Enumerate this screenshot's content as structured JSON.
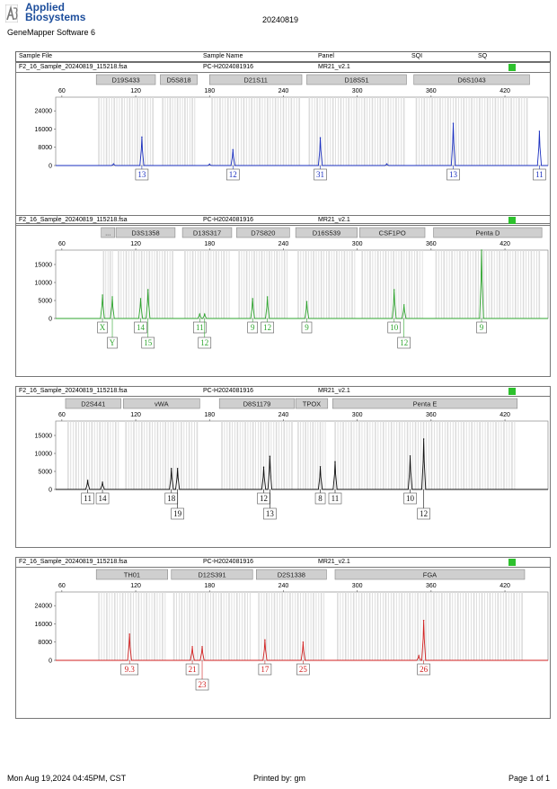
{
  "header": {
    "brand_line1": "Applied",
    "brand_line2": "Biosystems",
    "software": "GeneMapper Software 6",
    "title": "20240819",
    "columns": [
      "Sample File",
      "Sample Name",
      "Panel",
      "SQI",
      "SQ"
    ]
  },
  "colors": {
    "blue": "#1a2fbf",
    "green": "#2fa52f",
    "black": "#111111",
    "red": "#d02020",
    "sq_ok": "#2dc12d"
  },
  "footer": {
    "printed_date": "Mon Aug 19,2024 04:45PM, CST",
    "printed_by": "Printed by: gm",
    "page": "Page 1 of 1"
  },
  "chart_data": [
    {
      "type": "line",
      "sample_file": "F2_16_Sample_20240819_115218.fsa",
      "sample_name": "PC-H2024081916",
      "panel": "MR21_v2.1",
      "color": "#1a2fbf",
      "x_ticks": [
        60,
        120,
        180,
        240,
        300,
        360,
        420
      ],
      "y_ticks": [
        0,
        8000,
        16000,
        24000
      ],
      "xlim": [
        55,
        455
      ],
      "ylim": [
        0,
        30000
      ],
      "markers": [
        {
          "label": "D19S433",
          "start": 88,
          "end": 136
        },
        {
          "label": "D5S818",
          "start": 140,
          "end": 170
        },
        {
          "label": "D21S11",
          "start": 180,
          "end": 255
        },
        {
          "label": "D18S51",
          "start": 259,
          "end": 340
        },
        {
          "label": "D6S1043",
          "start": 346,
          "end": 440
        }
      ],
      "peaks": [
        {
          "x": 102,
          "y": 700
        },
        {
          "x": 125,
          "y": 12500
        },
        {
          "x": 180,
          "y": 600
        },
        {
          "x": 199,
          "y": 7000
        },
        {
          "x": 270,
          "y": 12200
        },
        {
          "x": 324,
          "y": 700
        },
        {
          "x": 378,
          "y": 18500
        },
        {
          "x": 460,
          "y": 0
        },
        {
          "x": 448,
          "y": 15000
        },
        {
          "x": 476,
          "y": 500
        }
      ],
      "alleles": [
        {
          "x": 125,
          "labels": [
            "13"
          ]
        },
        {
          "x": 199,
          "labels": [
            "12"
          ]
        },
        {
          "x": 270,
          "labels": [
            "31"
          ]
        },
        {
          "x": 378,
          "labels": [
            "13"
          ]
        },
        {
          "x": 448,
          "labels": [
            "11"
          ]
        }
      ]
    },
    {
      "type": "line",
      "sample_file": "F2_16_Sample_20240819_115218.fsa",
      "sample_name": "PC-H2024081916",
      "panel": "MR21_v2.1",
      "color": "#2fa52f",
      "x_ticks": [
        60,
        120,
        180,
        240,
        300,
        360,
        420
      ],
      "y_ticks": [
        0,
        5000,
        10000,
        15000
      ],
      "xlim": [
        55,
        455
      ],
      "ylim": [
        0,
        19000
      ],
      "markers": [
        {
          "label": "...",
          "start": 92,
          "end": 103
        },
        {
          "label": "D3S1358",
          "start": 104,
          "end": 152
        },
        {
          "label": "D13S317",
          "start": 158,
          "end": 198
        },
        {
          "label": "D7S820",
          "start": 202,
          "end": 245
        },
        {
          "label": "D16S539",
          "start": 250,
          "end": 300
        },
        {
          "label": "CSF1PO",
          "start": 302,
          "end": 355
        },
        {
          "label": "Penta D",
          "start": 362,
          "end": 450
        }
      ],
      "peaks": [
        {
          "x": 93,
          "y": 6500
        },
        {
          "x": 101,
          "y": 6000
        },
        {
          "x": 124,
          "y": 5500
        },
        {
          "x": 130,
          "y": 8000
        },
        {
          "x": 172,
          "y": 1200
        },
        {
          "x": 176,
          "y": 1200
        },
        {
          "x": 215,
          "y": 5500
        },
        {
          "x": 227,
          "y": 6000
        },
        {
          "x": 259,
          "y": 4700
        },
        {
          "x": 330,
          "y": 8000
        },
        {
          "x": 338,
          "y": 3800
        },
        {
          "x": 401,
          "y": 19000
        }
      ],
      "alleles": [
        {
          "x": 93,
          "labels": [
            "X"
          ]
        },
        {
          "x": 101,
          "labels": [
            "",
            "Y"
          ]
        },
        {
          "x": 124,
          "labels": [
            "14"
          ]
        },
        {
          "x": 130,
          "labels": [
            "",
            "15"
          ]
        },
        {
          "x": 172,
          "labels": [
            "11"
          ]
        },
        {
          "x": 176,
          "labels": [
            "",
            "12"
          ]
        },
        {
          "x": 215,
          "labels": [
            "9"
          ]
        },
        {
          "x": 227,
          "labels": [
            "12"
          ]
        },
        {
          "x": 259,
          "labels": [
            "9"
          ]
        },
        {
          "x": 330,
          "labels": [
            "10"
          ]
        },
        {
          "x": 338,
          "labels": [
            "",
            "12"
          ]
        },
        {
          "x": 401,
          "labels": [
            "9"
          ]
        }
      ]
    },
    {
      "type": "line",
      "sample_file": "F2_16_Sample_20240819_115218.fsa",
      "sample_name": "PC-H2024081916",
      "panel": "MR21_v2.1",
      "color": "#111111",
      "x_ticks": [
        60,
        120,
        180,
        240,
        300,
        360,
        420
      ],
      "y_ticks": [
        0,
        5000,
        10000,
        15000
      ],
      "xlim": [
        55,
        455
      ],
      "ylim": [
        0,
        19000
      ],
      "markers": [
        {
          "label": "D2S441",
          "start": 63,
          "end": 108
        },
        {
          "label": "vWA",
          "start": 110,
          "end": 172
        },
        {
          "label": "D8S1179",
          "start": 188,
          "end": 249
        },
        {
          "label": "TPOX",
          "start": 250,
          "end": 276
        },
        {
          "label": "Penta E",
          "start": 280,
          "end": 430
        }
      ],
      "peaks": [
        {
          "x": 81,
          "y": 2500
        },
        {
          "x": 93,
          "y": 2000
        },
        {
          "x": 149,
          "y": 5800
        },
        {
          "x": 154,
          "y": 5800
        },
        {
          "x": 224,
          "y": 6200
        },
        {
          "x": 229,
          "y": 9200
        },
        {
          "x": 270,
          "y": 6300
        },
        {
          "x": 282,
          "y": 7700
        },
        {
          "x": 343,
          "y": 9300
        },
        {
          "x": 354,
          "y": 14000
        }
      ],
      "alleles": [
        {
          "x": 81,
          "labels": [
            "11"
          ]
        },
        {
          "x": 93,
          "labels": [
            "14"
          ]
        },
        {
          "x": 149,
          "labels": [
            "18"
          ]
        },
        {
          "x": 154,
          "labels": [
            "",
            "19"
          ]
        },
        {
          "x": 224,
          "labels": [
            "12"
          ]
        },
        {
          "x": 229,
          "labels": [
            "",
            "13"
          ]
        },
        {
          "x": 270,
          "labels": [
            "8"
          ]
        },
        {
          "x": 282,
          "labels": [
            "11"
          ]
        },
        {
          "x": 343,
          "labels": [
            "10"
          ]
        },
        {
          "x": 354,
          "labels": [
            "",
            "12"
          ]
        }
      ]
    },
    {
      "type": "line",
      "sample_file": "F2_16_Sample_20240819_115218.fsa",
      "sample_name": "PC-H2024081916",
      "panel": "MR21_v2.1",
      "color": "#d02020",
      "x_ticks": [
        60,
        120,
        180,
        240,
        300,
        360,
        420
      ],
      "y_ticks": [
        0,
        8000,
        16000,
        24000
      ],
      "xlim": [
        55,
        455
      ],
      "ylim": [
        0,
        30000
      ],
      "markers": [
        {
          "label": "TH01",
          "start": 88,
          "end": 146
        },
        {
          "label": "D12S391",
          "start": 149,
          "end": 215
        },
        {
          "label": "D2S1338",
          "start": 218,
          "end": 275
        },
        {
          "label": "FGA",
          "start": 282,
          "end": 436
        }
      ],
      "peaks": [
        {
          "x": 115,
          "y": 11500
        },
        {
          "x": 166,
          "y": 6000
        },
        {
          "x": 174,
          "y": 6000
        },
        {
          "x": 225,
          "y": 9000
        },
        {
          "x": 256,
          "y": 8000
        },
        {
          "x": 350,
          "y": 2000
        },
        {
          "x": 354,
          "y": 17500
        }
      ],
      "alleles": [
        {
          "x": 115,
          "labels": [
            "9.3"
          ]
        },
        {
          "x": 166,
          "labels": [
            "21"
          ]
        },
        {
          "x": 174,
          "labels": [
            "",
            "23"
          ]
        },
        {
          "x": 225,
          "labels": [
            "17"
          ]
        },
        {
          "x": 256,
          "labels": [
            "25"
          ]
        },
        {
          "x": 354,
          "labels": [
            "26"
          ]
        }
      ]
    }
  ]
}
